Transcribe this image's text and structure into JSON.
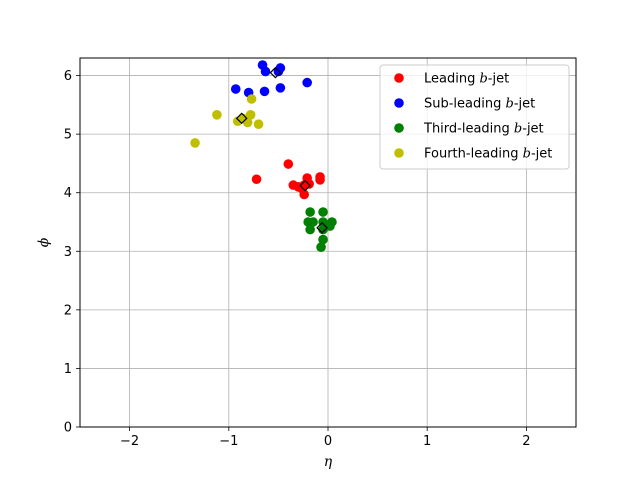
{
  "chart_data": {
    "type": "scatter",
    "xlabel": "η",
    "ylabel": "ϕ",
    "xlim": [
      -2.5,
      2.5
    ],
    "ylim": [
      0,
      6.3
    ],
    "xticks": [
      -2,
      -1,
      0,
      1,
      2
    ],
    "yticks": [
      0,
      1,
      2,
      3,
      4,
      5,
      6
    ],
    "grid": true,
    "legend_placement": "top-right",
    "series": [
      {
        "name": "Leading b-jet",
        "legend_prefix": "Leading ",
        "legend_italic": "b",
        "legend_suffix": "-jet",
        "color": "#ff0000",
        "points": [
          [
            -0.72,
            4.23
          ],
          [
            -0.4,
            4.49
          ],
          [
            -0.35,
            4.13
          ],
          [
            -0.3,
            4.1
          ],
          [
            -0.27,
            4.08
          ],
          [
            -0.24,
            3.97
          ],
          [
            -0.21,
            4.25
          ],
          [
            -0.19,
            4.15
          ],
          [
            -0.08,
            4.22
          ],
          [
            -0.08,
            4.27
          ],
          [
            -0.24,
            4.13
          ]
        ],
        "mean": [
          -0.23,
          4.12
        ]
      },
      {
        "name": "Sub-leading b-jet",
        "legend_prefix": "Sub-leading ",
        "legend_italic": "b",
        "legend_suffix": "-jet",
        "color": "#0000ff",
        "points": [
          [
            -0.66,
            6.18
          ],
          [
            -0.63,
            6.07
          ],
          [
            -0.5,
            6.07
          ],
          [
            -0.48,
            6.13
          ],
          [
            -0.93,
            5.77
          ],
          [
            -0.8,
            5.71
          ],
          [
            -0.64,
            5.73
          ],
          [
            -0.48,
            5.79
          ],
          [
            -0.21,
            5.88
          ]
        ],
        "mean": [
          -0.53,
          6.05
        ]
      },
      {
        "name": "Third-leading b-jet",
        "legend_prefix": "Third-leading ",
        "legend_italic": "b",
        "legend_suffix": "-jet",
        "color": "#008000",
        "points": [
          [
            -0.18,
            3.67
          ],
          [
            -0.05,
            3.67
          ],
          [
            -0.2,
            3.5
          ],
          [
            -0.15,
            3.5
          ],
          [
            -0.05,
            3.5
          ],
          [
            0.04,
            3.5
          ],
          [
            -0.18,
            3.37
          ],
          [
            -0.05,
            3.37
          ],
          [
            0.02,
            3.43
          ],
          [
            -0.05,
            3.2
          ],
          [
            -0.07,
            3.07
          ]
        ],
        "mean": [
          -0.06,
          3.4
        ]
      },
      {
        "name": "Fourth-leading b-jet",
        "legend_prefix": "Fourth-leading ",
        "legend_italic": "b",
        "legend_suffix": "-jet",
        "color": "#bfbf00",
        "points": [
          [
            -1.34,
            4.85
          ],
          [
            -1.12,
            5.33
          ],
          [
            -0.91,
            5.22
          ],
          [
            -0.86,
            5.27
          ],
          [
            -0.78,
            5.33
          ],
          [
            -0.81,
            5.2
          ],
          [
            -0.7,
            5.17
          ],
          [
            -0.77,
            5.6
          ]
        ],
        "mean": [
          -0.87,
          5.27
        ]
      }
    ]
  }
}
